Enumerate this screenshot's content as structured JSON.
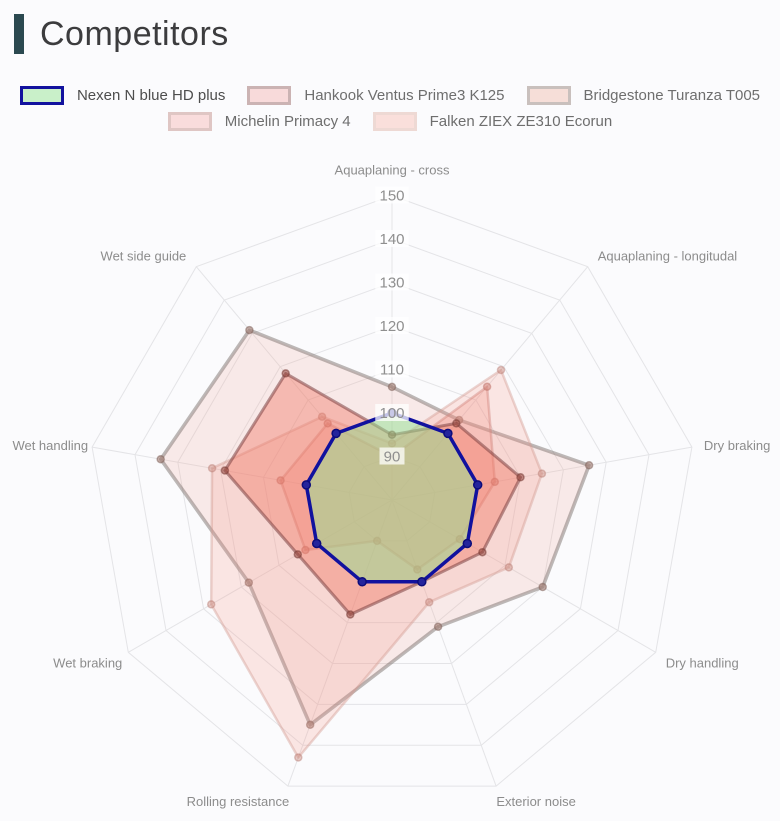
{
  "header": {
    "title": "Competitors",
    "accent_bar_color": "#2b4950"
  },
  "chart_data": {
    "type": "radar",
    "title": "Competitors",
    "axes": [
      "Aquaplaning - cross",
      "Aquaplaning - longitudal",
      "Dry braking",
      "Dry handling",
      "Exterior noise",
      "Rolling resistance",
      "Wet braking",
      "Wet handling",
      "Wet side guide"
    ],
    "scale": {
      "min": 80,
      "max": 150,
      "tick_step": 10,
      "ticks": [
        90,
        100,
        110,
        120,
        130,
        140,
        150
      ],
      "grid_color": "#e4e4e7",
      "tick_color": "#8f8f8f",
      "axis_label_color": "#8c8c8c",
      "tick_backdrop": "rgba(255,255,255,0.75)"
    },
    "legend_position": "top",
    "series": [
      {
        "name": "Nexen N blue HD plus",
        "values": [
          100,
          100,
          100,
          100,
          100,
          100,
          100,
          100,
          100
        ],
        "stroke": "#11119e",
        "fill": "rgba(146,226,146,0.50)",
        "point_fill": "#24249c",
        "point_stroke": "#0c0c7a",
        "stroke_width": 3.5,
        "point_radius": 4,
        "z": 5,
        "legend_row": 1,
        "swatch_fill": "#c9f0c9",
        "swatch_border": "#12129e",
        "label_color": "#4d4d4d"
      },
      {
        "name": "Hankook Ventus Prime3 K125",
        "values": [
          95,
          103,
          110,
          104,
          100,
          108,
          105,
          119,
          118
        ],
        "stroke": "rgba(125,65,65,0.55)",
        "fill": "rgba(240,118,100,0.42)",
        "point_fill": "rgba(150,70,60,0.55)",
        "point_stroke": "rgba(120,60,55,0.55)",
        "stroke_width": 3,
        "point_radius": 3.5,
        "z": 4,
        "legend_row": 1,
        "swatch_fill": "#f8dada",
        "swatch_border": "#cbb3b3",
        "label_color": "#6e6e6e"
      },
      {
        "name": "Bridgestone Turanza T005",
        "values": [
          106,
          104,
          126,
          120,
          111,
          135,
          118,
          134,
          131
        ],
        "stroke": "rgba(125,115,112,0.50)",
        "fill": "rgba(242,166,152,0.20)",
        "point_fill": "rgba(160,120,110,0.55)",
        "point_stroke": "rgba(130,100,92,0.55)",
        "stroke_width": 3.5,
        "point_radius": 3.5,
        "z": 1,
        "legend_row": 1,
        "swatch_fill": "#f6ded8",
        "swatch_border": "#c9c0bd",
        "label_color": "#6e6e6e"
      },
      {
        "name": "Michelin Primacy 4",
        "values": [
          90,
          114,
          104,
          98,
          97,
          90,
          103,
          106,
          103
        ],
        "stroke": "rgba(200,130,125,0.45)",
        "fill": "rgba(244,138,122,0.28)",
        "point_fill": "rgba(200,120,110,0.50)",
        "point_stroke": "rgba(175,105,98,0.50)",
        "stroke_width": 2.5,
        "point_radius": 3.5,
        "z": 2,
        "legend_row": 2,
        "swatch_fill": "#f9dcdc",
        "swatch_border": "#dfc6c4",
        "label_color": "#6e6e6e"
      },
      {
        "name": "Falken ZIEX ZE310 Ecorun",
        "values": [
          93,
          119,
          115,
          111,
          105,
          143,
          128,
          122,
          105
        ],
        "stroke": "rgba(210,155,145,0.42)",
        "fill": "rgba(246,152,136,0.22)",
        "point_fill": "rgba(205,140,128,0.45)",
        "point_stroke": "rgba(185,125,115,0.45)",
        "stroke_width": 2.5,
        "point_radius": 3.5,
        "z": 3,
        "legend_row": 2,
        "swatch_fill": "#fadfdb",
        "swatch_border": "#eed9d4",
        "label_color": "#6e6e6e"
      }
    ]
  }
}
